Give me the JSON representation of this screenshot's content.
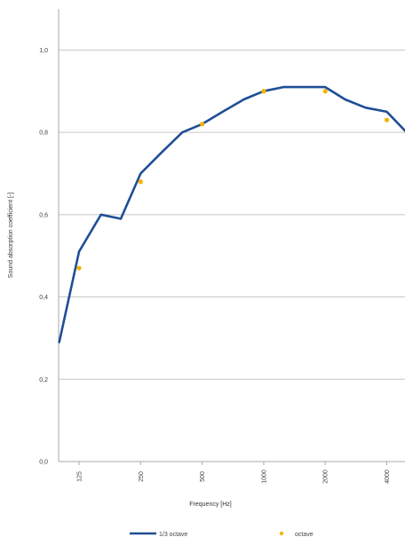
{
  "chart_data": {
    "type": "line",
    "xlabel": "Frequency [Hz]",
    "ylabel": "Sound absorption coefficient [-]",
    "ylim": [
      0,
      1.1
    ],
    "yticks": [
      {
        "value": 0.0,
        "label": "0,0"
      },
      {
        "value": 0.2,
        "label": "0,2"
      },
      {
        "value": 0.4,
        "label": "0,4"
      },
      {
        "value": 0.6,
        "label": "0,6"
      },
      {
        "value": 0.8,
        "label": "0,8"
      },
      {
        "value": 1.0,
        "label": "1,0"
      }
    ],
    "xscale": "log",
    "xlim": [
      100,
      5000
    ],
    "xticks": [
      {
        "value": 125,
        "label": "125"
      },
      {
        "value": 250,
        "label": "250"
      },
      {
        "value": 500,
        "label": "500"
      },
      {
        "value": 1000,
        "label": "1000"
      },
      {
        "value": 2000,
        "label": "2000"
      },
      {
        "value": 4000,
        "label": "4000"
      }
    ],
    "grid": "horizontal",
    "legend_position": "bottom",
    "series": [
      {
        "name": "1/3 octave",
        "style": "line",
        "color": "#1f4e96",
        "x": [
          100,
          125,
          160,
          200,
          250,
          315,
          400,
          500,
          630,
          800,
          1000,
          1250,
          1600,
          2000,
          2500,
          3150,
          4000,
          5000
        ],
        "y": [
          0.29,
          0.51,
          0.6,
          0.59,
          0.7,
          0.75,
          0.8,
          0.82,
          0.85,
          0.88,
          0.9,
          0.91,
          0.91,
          0.91,
          0.88,
          0.86,
          0.85,
          0.8
        ]
      },
      {
        "name": "octave",
        "style": "marker",
        "color": "#f0b400",
        "x": [
          125,
          250,
          500,
          1000,
          2000,
          4000
        ],
        "y": [
          0.47,
          0.68,
          0.82,
          0.9,
          0.9,
          0.83
        ]
      }
    ]
  }
}
